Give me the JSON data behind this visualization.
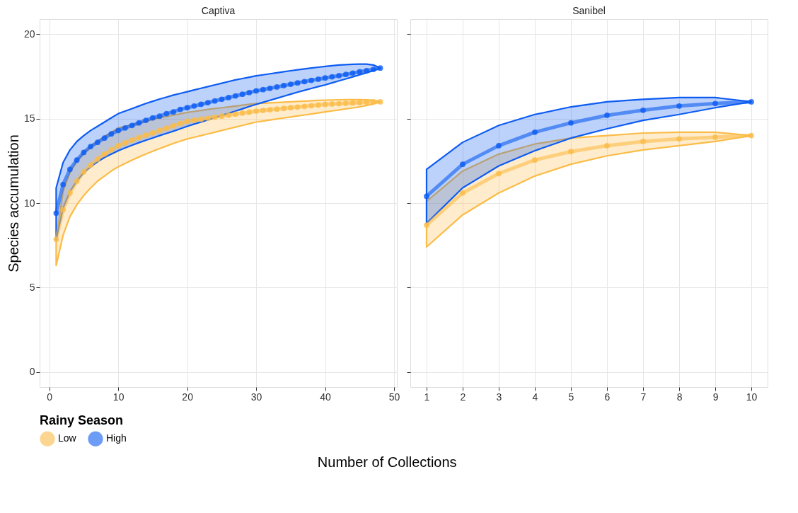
{
  "chart_data": [
    {
      "type": "line",
      "title": "Captiva",
      "xlabel": "Number of Collections",
      "ylabel": "Species accumulation",
      "legend_title": "Rainy Season",
      "legend": "bottom",
      "grid": true,
      "marker": "circle",
      "line_style": "solid",
      "x": [
        1,
        2,
        3,
        4,
        5,
        6,
        7,
        8,
        9,
        10,
        11,
        12,
        13,
        14,
        15,
        16,
        17,
        18,
        19,
        20,
        21,
        22,
        23,
        24,
        25,
        26,
        27,
        28,
        29,
        30,
        31,
        32,
        33,
        34,
        35,
        36,
        37,
        38,
        39,
        40,
        41,
        42,
        43,
        44,
        45,
        46,
        47,
        48
      ],
      "xlim": [
        -1.4,
        50.4
      ],
      "xticks": [
        0,
        10,
        20,
        30,
        40,
        50
      ],
      "ylim": [
        -0.9,
        20.9
      ],
      "yticks": [
        0,
        5,
        10,
        15,
        20
      ],
      "series": [
        {
          "name": "Low",
          "color": "#fbbc47",
          "values": [
            7.85,
            9.6,
            10.6,
            11.3,
            11.85,
            12.25,
            12.6,
            12.9,
            13.15,
            13.4,
            13.57,
            13.73,
            13.88,
            14.02,
            14.16,
            14.3,
            14.44,
            14.58,
            14.72,
            14.85,
            14.91,
            14.97,
            15.03,
            15.09,
            15.15,
            15.21,
            15.27,
            15.33,
            15.39,
            15.45,
            15.49,
            15.53,
            15.57,
            15.61,
            15.65,
            15.69,
            15.73,
            15.77,
            15.81,
            15.85,
            15.87,
            15.89,
            15.91,
            15.93,
            15.95,
            15.97,
            15.99,
            16.0
          ],
          "lower": [
            6.3,
            8.1,
            9.2,
            9.9,
            10.45,
            10.9,
            11.3,
            11.6,
            11.9,
            12.15,
            12.35,
            12.55,
            12.73,
            12.9,
            13.07,
            13.23,
            13.38,
            13.53,
            13.67,
            13.8,
            13.9,
            14.0,
            14.1,
            14.2,
            14.3,
            14.4,
            14.5,
            14.6,
            14.7,
            14.8,
            14.86,
            14.92,
            14.98,
            15.04,
            15.1,
            15.16,
            15.22,
            15.28,
            15.34,
            15.4,
            15.46,
            15.52,
            15.58,
            15.64,
            15.7,
            15.78,
            15.87,
            16.0
          ],
          "upper": [
            7.85,
            10.7,
            11.8,
            12.5,
            12.95,
            13.35,
            13.65,
            13.95,
            14.2,
            14.45,
            14.55,
            14.65,
            14.75,
            14.85,
            14.95,
            15.05,
            15.13,
            15.21,
            15.29,
            15.37,
            15.43,
            15.49,
            15.55,
            15.6,
            15.65,
            15.7,
            15.75,
            15.8,
            15.85,
            15.9,
            15.92,
            15.94,
            15.96,
            15.98,
            16.0,
            16.02,
            16.04,
            16.06,
            16.08,
            16.1,
            16.11,
            16.12,
            16.13,
            16.13,
            16.13,
            16.12,
            16.1,
            16.0
          ]
        },
        {
          "name": "High",
          "color": "#0d5cf2",
          "values": [
            9.4,
            11.1,
            12.0,
            12.55,
            13.0,
            13.35,
            13.6,
            13.85,
            14.1,
            14.3,
            14.45,
            14.6,
            14.75,
            14.9,
            15.05,
            15.15,
            15.3,
            15.4,
            15.55,
            15.65,
            15.75,
            15.85,
            15.95,
            16.05,
            16.15,
            16.25,
            16.35,
            16.45,
            16.55,
            16.65,
            16.72,
            16.8,
            16.88,
            16.96,
            17.04,
            17.12,
            17.2,
            17.27,
            17.34,
            17.41,
            17.48,
            17.55,
            17.62,
            17.7,
            17.78,
            17.85,
            17.92,
            18.0
          ],
          "lower": [
            7.85,
            9.7,
            10.7,
            11.3,
            11.8,
            12.15,
            12.45,
            12.7,
            12.9,
            13.1,
            13.27,
            13.43,
            13.58,
            13.72,
            13.86,
            14.0,
            14.13,
            14.26,
            14.4,
            14.55,
            14.68,
            14.8,
            14.93,
            15.06,
            15.19,
            15.32,
            15.45,
            15.58,
            15.72,
            15.85,
            15.97,
            16.09,
            16.21,
            16.33,
            16.45,
            16.57,
            16.68,
            16.79,
            16.9,
            17.0,
            17.12,
            17.24,
            17.36,
            17.48,
            17.6,
            17.72,
            17.85,
            18.0
          ],
          "upper": [
            10.9,
            12.4,
            13.15,
            13.65,
            14.0,
            14.3,
            14.55,
            14.8,
            15.05,
            15.3,
            15.45,
            15.6,
            15.75,
            15.9,
            16.03,
            16.16,
            16.28,
            16.4,
            16.5,
            16.6,
            16.7,
            16.8,
            16.9,
            17.0,
            17.1,
            17.2,
            17.3,
            17.38,
            17.46,
            17.54,
            17.6,
            17.66,
            17.72,
            17.78,
            17.84,
            17.9,
            17.95,
            18.0,
            18.05,
            18.1,
            18.14,
            18.18,
            18.2,
            18.22,
            18.23,
            18.23,
            18.18,
            18.0
          ]
        }
      ]
    },
    {
      "type": "line",
      "title": "Sanibel",
      "grid": true,
      "marker": "circle",
      "line_style": "solid",
      "tick_labels": "x",
      "x": [
        1,
        2,
        3,
        4,
        5,
        6,
        7,
        8,
        9,
        10
      ],
      "xlim": [
        0.55,
        10.45
      ],
      "xticks": [
        1,
        2,
        3,
        4,
        5,
        6,
        7,
        8,
        9,
        10
      ],
      "ylim": [
        -0.9,
        20.9
      ],
      "yticks": [
        0,
        5,
        10,
        15,
        20
      ],
      "series": [
        {
          "name": "Low",
          "color": "#fbbc47",
          "values": [
            8.7,
            10.6,
            11.75,
            12.55,
            13.05,
            13.4,
            13.65,
            13.8,
            13.9,
            14.0
          ],
          "lower": [
            7.4,
            9.3,
            10.6,
            11.6,
            12.3,
            12.8,
            13.15,
            13.4,
            13.65,
            14.0
          ],
          "upper": [
            10.1,
            11.9,
            12.9,
            13.5,
            13.85,
            14.0,
            14.15,
            14.2,
            14.2,
            14.0
          ]
        },
        {
          "name": "High",
          "color": "#0d5cf2",
          "values": [
            10.4,
            12.3,
            13.4,
            14.2,
            14.75,
            15.2,
            15.5,
            15.75,
            15.9,
            16.0
          ],
          "lower": [
            8.8,
            10.9,
            12.2,
            13.1,
            13.85,
            14.4,
            14.9,
            15.25,
            15.65,
            16.0
          ],
          "upper": [
            12.0,
            13.6,
            14.6,
            15.25,
            15.7,
            16.0,
            16.15,
            16.25,
            16.25,
            16.0
          ]
        }
      ]
    }
  ]
}
